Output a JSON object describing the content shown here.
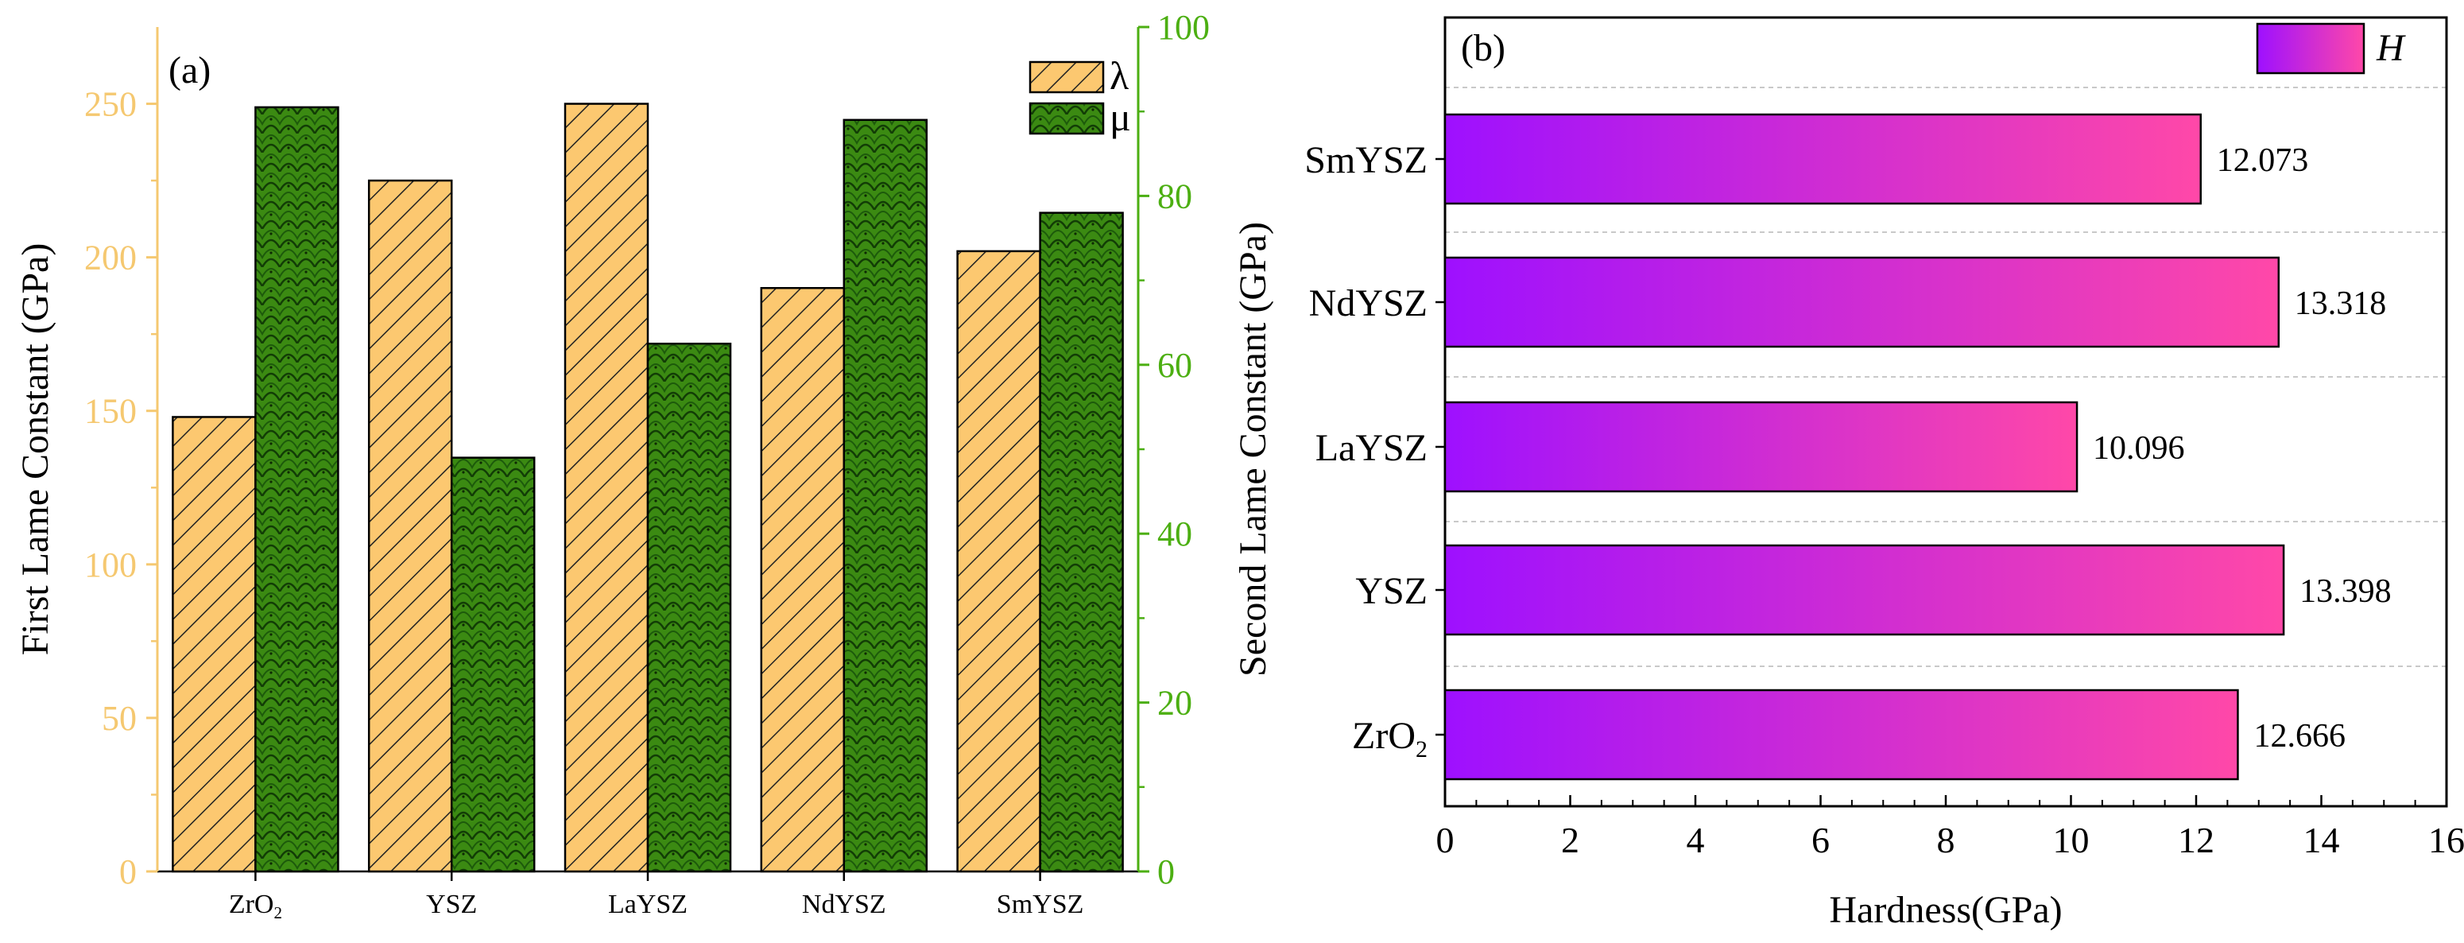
{
  "chart_data": [
    {
      "type": "bar",
      "panel_label": "(a)",
      "categories": [
        {
          "base": "ZrO",
          "sub": "2"
        },
        {
          "base": "YSZ",
          "sub": ""
        },
        {
          "base": "LaYSZ",
          "sub": ""
        },
        {
          "base": "NdYSZ",
          "sub": ""
        },
        {
          "base": "SmYSZ",
          "sub": ""
        }
      ],
      "series": [
        {
          "name": "λ",
          "axis": "left",
          "values": [
            148,
            225,
            250,
            190,
            202
          ],
          "color": "#fcc870",
          "pattern": "diagonal-hatch"
        },
        {
          "name": "μ",
          "axis": "right",
          "values": [
            90.5,
            49,
            62.5,
            89,
            78
          ],
          "color": "#3b8a12",
          "pattern": "scale-texture"
        }
      ],
      "left_axis": {
        "label": "First Lame Constant (GPa)",
        "ylim": [
          0,
          275
        ],
        "ticks": [
          0,
          50,
          100,
          150,
          200,
          250
        ],
        "color": "#f5c870"
      },
      "right_axis": {
        "label": "Second Lame Constant (GPa)",
        "ylim": [
          0,
          100
        ],
        "ticks": [
          0,
          20,
          40,
          60,
          80,
          100
        ],
        "color": "#4caf12"
      },
      "legend": {
        "position": "top-right",
        "entries": [
          "λ",
          "μ"
        ]
      }
    },
    {
      "type": "bar",
      "orientation": "horizontal",
      "panel_label": "(b)",
      "categories": [
        {
          "base": "ZrO",
          "sub": "2"
        },
        {
          "base": "YSZ",
          "sub": ""
        },
        {
          "base": "LaYSZ",
          "sub": ""
        },
        {
          "base": "NdYSZ",
          "sub": ""
        },
        {
          "base": "SmYSZ",
          "sub": ""
        }
      ],
      "series": [
        {
          "name": "H",
          "values": [
            12.666,
            13.398,
            10.096,
            13.318,
            12.073
          ],
          "labels": [
            "12.666",
            "13.398",
            "10.096",
            "13.318",
            "12.073"
          ],
          "gradient": [
            "#9e10ff",
            "#ff48a8"
          ]
        }
      ],
      "xlabel": "Hardness(GPa)",
      "xlim": [
        0,
        16
      ],
      "xticks": [
        0,
        2,
        4,
        6,
        8,
        10,
        12,
        14,
        16
      ],
      "grid": "horizontal-dashed",
      "legend": {
        "position": "top-right",
        "entries": [
          "H"
        ]
      }
    }
  ]
}
